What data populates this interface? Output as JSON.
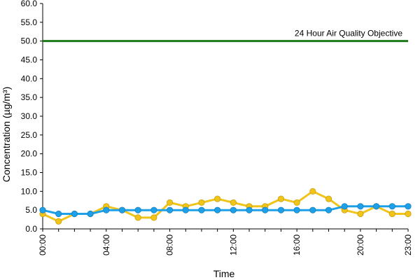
{
  "chart_data": {
    "type": "line",
    "xlabel": "Time",
    "ylabel": "Concentration (µg/m³)",
    "ylim": [
      0,
      60
    ],
    "yticks": [
      "0.0",
      "5.0",
      "10.0",
      "15.0",
      "20.0",
      "25.0",
      "30.0",
      "35.0",
      "40.0",
      "45.0",
      "50.0",
      "55.0",
      "60.0"
    ],
    "x": [
      "00:00",
      "01:00",
      "02:00",
      "03:00",
      "04:00",
      "05:00",
      "06:00",
      "07:00",
      "08:00",
      "09:00",
      "10:00",
      "11:00",
      "12:00",
      "13:00",
      "14:00",
      "15:00",
      "16:00",
      "17:00",
      "18:00",
      "19:00",
      "20:00",
      "21:00",
      "22:00",
      "23:00"
    ],
    "xtick_labels": [
      "00:00",
      "04:00",
      "08:00",
      "12:00",
      "16:00",
      "20:00",
      "23:00"
    ],
    "grid": false,
    "legend": "none",
    "series": [
      {
        "color": "#f0c419",
        "values": [
          4,
          2,
          4,
          4,
          6,
          5,
          3,
          3,
          7,
          6,
          7,
          8,
          7,
          6,
          6,
          8,
          7,
          10,
          8,
          5,
          4,
          6,
          4,
          4
        ]
      },
      {
        "color": "#1ea0e8",
        "values": [
          5,
          4,
          4,
          4,
          5,
          5,
          5,
          5,
          5,
          5,
          5,
          5,
          5,
          5,
          5,
          5,
          5,
          5,
          5,
          6,
          6,
          6,
          6,
          6
        ]
      }
    ],
    "reference_line": {
      "value": 50,
      "label": "24 Hour Air Quality Objective",
      "color": "#1a7a1a"
    }
  }
}
